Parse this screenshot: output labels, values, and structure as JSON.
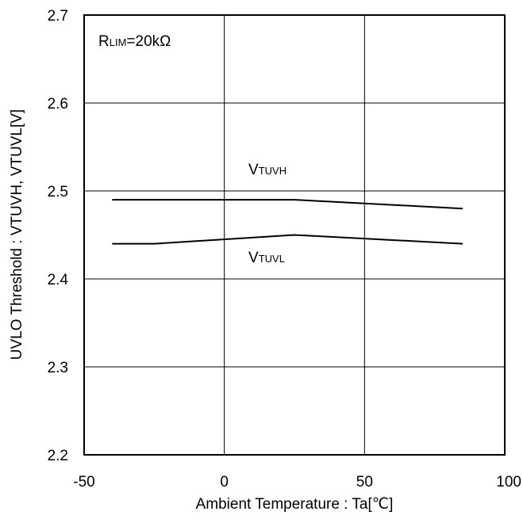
{
  "chart_data": {
    "type": "line",
    "xlabel": "Ambient Temperature : Ta[℃]",
    "ylabel": "UVLO Threshold : VTUVH, VTUVL[V]",
    "xlim": [
      -50,
      100
    ],
    "ylim": [
      2.2,
      2.7
    ],
    "x_ticks": [
      "-50",
      "0",
      "50",
      "100"
    ],
    "y_ticks": [
      "2.2",
      "2.3",
      "2.4",
      "2.5",
      "2.6",
      "2.7"
    ],
    "grid": true,
    "annotation": {
      "main": "R",
      "sub": "LIM",
      "rest": "=20kΩ"
    },
    "series": [
      {
        "name": "VTUVH",
        "label_main": "V",
        "label_sub": "TUVH",
        "x": [
          -40,
          -25,
          25,
          85
        ],
        "y": [
          2.49,
          2.49,
          2.49,
          2.48
        ]
      },
      {
        "name": "VTUVL",
        "label_main": "V",
        "label_sub": "TUVL",
        "x": [
          -40,
          -25,
          25,
          85
        ],
        "y": [
          2.44,
          2.44,
          2.45,
          2.44
        ]
      }
    ],
    "line_color": "#000000"
  }
}
